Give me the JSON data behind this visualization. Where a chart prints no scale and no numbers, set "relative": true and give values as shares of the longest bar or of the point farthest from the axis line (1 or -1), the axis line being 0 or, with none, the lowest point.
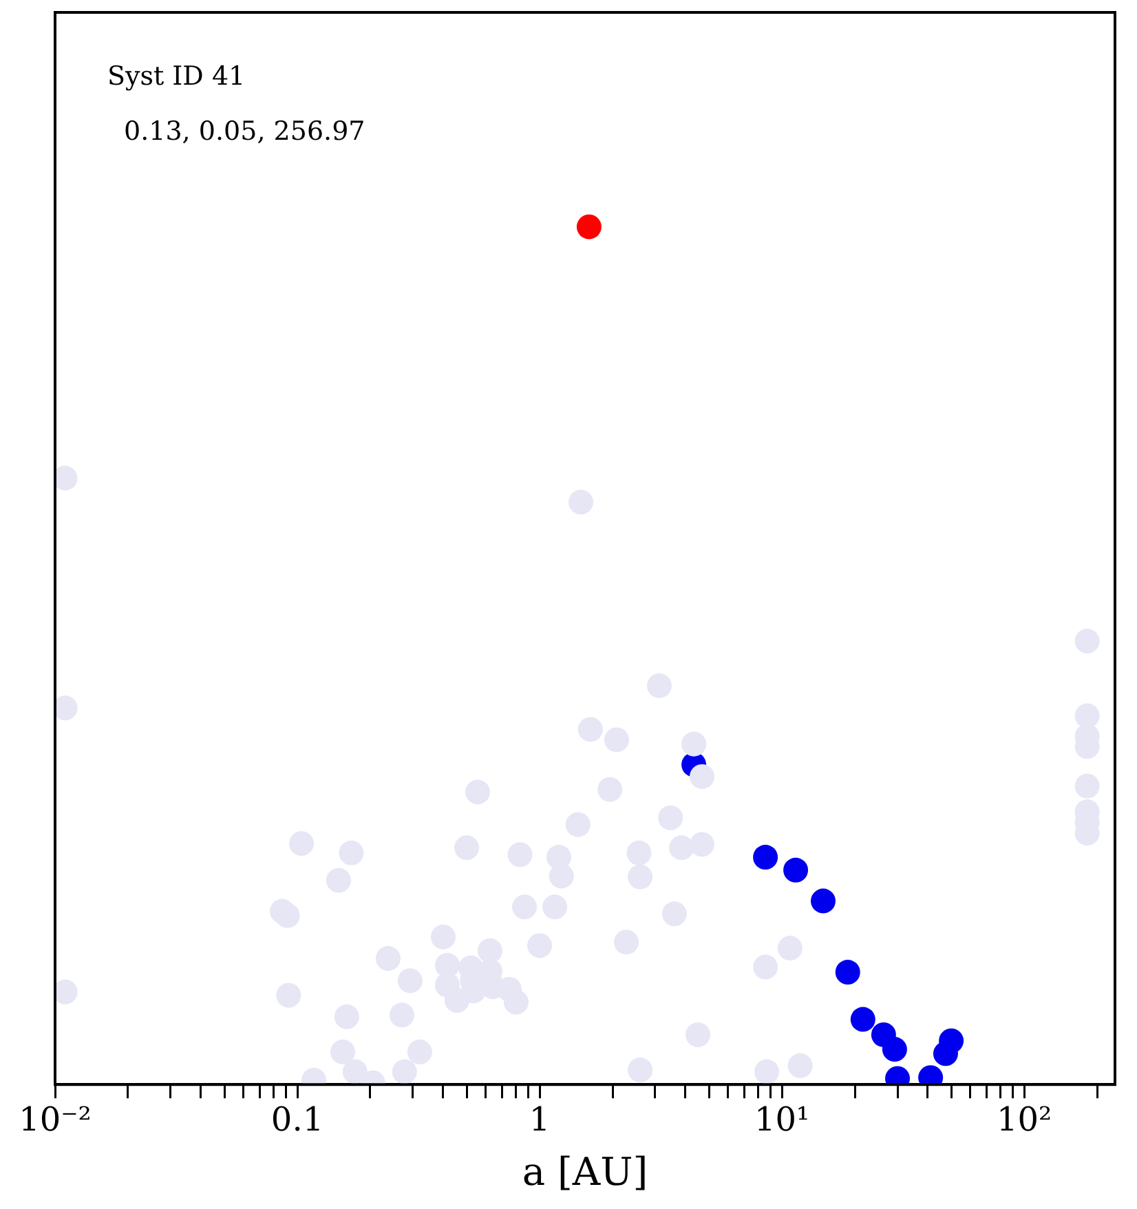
{
  "chart_data": {
    "type": "scatter",
    "xlabel": "a [AU]",
    "relative": true,
    "log": "x",
    "legend": false,
    "grid": false,
    "marker": "circle",
    "xlim": [
      0.01,
      237
    ],
    "xticks": [
      {
        "value": 0.01,
        "label": "10⁻²"
      },
      {
        "value": 0.02,
        "label": null
      },
      {
        "value": 0.03,
        "label": null
      },
      {
        "value": 0.04,
        "label": null
      },
      {
        "value": 0.05,
        "label": null
      },
      {
        "value": 0.06,
        "label": null
      },
      {
        "value": 0.07,
        "label": null
      },
      {
        "value": 0.08,
        "label": null
      },
      {
        "value": 0.09,
        "label": null
      },
      0.1,
      {
        "value": 0.2,
        "label": null
      },
      {
        "value": 0.3,
        "label": null
      },
      {
        "value": 0.4,
        "label": null
      },
      {
        "value": 0.5,
        "label": null
      },
      {
        "value": 0.6,
        "label": null
      },
      {
        "value": 0.7,
        "label": null
      },
      {
        "value": 0.8,
        "label": null
      },
      {
        "value": 0.9,
        "label": null
      },
      1,
      {
        "value": 2,
        "label": null
      },
      {
        "value": 3,
        "label": null
      },
      {
        "value": 4,
        "label": null
      },
      {
        "value": 5,
        "label": null
      },
      {
        "value": 6,
        "label": null
      },
      {
        "value": 7,
        "label": null
      },
      {
        "value": 8,
        "label": null
      },
      {
        "value": 9,
        "label": null
      },
      {
        "value": 10,
        "label": "10¹"
      },
      {
        "value": 20,
        "label": null
      },
      {
        "value": 30,
        "label": null
      },
      {
        "value": 40,
        "label": null
      },
      {
        "value": 50,
        "label": null
      },
      {
        "value": 60,
        "label": null
      },
      {
        "value": 70,
        "label": null
      },
      {
        "value": 80,
        "label": null
      },
      {
        "value": 90,
        "label": null
      },
      {
        "value": 100,
        "label": "10²"
      },
      {
        "value": 200,
        "label": null
      }
    ],
    "annotations": [
      "Syst ID 41",
      "0.13, 0.05, 256.97"
    ],
    "series": [
      {
        "color": "#e6e6f5",
        "x": [
          0.011,
          0.011,
          0.011,
          1.48,
          3.12,
          1.62,
          2.08,
          1.95,
          4.33,
          4.68,
          3.47,
          1.44,
          3.85,
          4.68,
          3.6,
          0.104,
          0.167,
          0.148,
          0.0866,
          0.091,
          0.092,
          0.237,
          0.4,
          0.416,
          0.292,
          0.416,
          0.52,
          0.527,
          0.624,
          0.624,
          0.533,
          0.456,
          0.641,
          0.75,
          0.8,
          0.866,
          0.83,
          1.0,
          1.155,
          1.23,
          1.2,
          2.28,
          2.57,
          2.6,
          2.6,
          0.16,
          0.27,
          0.154,
          0.32,
          0.173,
          0.277,
          0.205,
          0.117,
          8.55,
          10.8,
          8.66,
          11.9,
          4.5,
          0.555,
          0.5,
          182,
          182,
          182,
          182,
          182,
          182,
          182,
          182
        ],
        "values": [
          0.707,
          0.439,
          0.108,
          0.679,
          0.465,
          0.414,
          0.402,
          0.344,
          0.397,
          0.359,
          0.311,
          0.303,
          0.276,
          0.28,
          0.199,
          0.281,
          0.27,
          0.238,
          0.202,
          0.197,
          0.104,
          0.147,
          0.172,
          0.139,
          0.121,
          0.116,
          0.136,
          0.121,
          0.156,
          0.132,
          0.109,
          0.098,
          0.114,
          0.111,
          0.096,
          0.207,
          0.268,
          0.162,
          0.207,
          0.243,
          0.265,
          0.166,
          0.27,
          0.242,
          0.017,
          0.079,
          0.081,
          0.038,
          0.038,
          0.015,
          0.015,
          0.002,
          0.005,
          0.137,
          0.159,
          0.015,
          0.022,
          0.058,
          0.341,
          0.276,
          0.517,
          0.43,
          0.406,
          0.394,
          0.348,
          0.318,
          0.306,
          0.293
        ]
      },
      {
        "color": "#0000ee",
        "x": [
          4.33,
          8.55,
          11.4,
          14.8,
          18.7,
          21.6,
          26.3,
          29.2,
          30.0,
          41.1,
          47.4,
          50.0
        ],
        "values": [
          0.373,
          0.265,
          0.25,
          0.214,
          0.131,
          0.076,
          0.058,
          0.041,
          0.007,
          0.008,
          0.036,
          0.051
        ]
      },
      {
        "color": "#ff0000",
        "x": [
          1.6
        ],
        "values": [
          1
        ]
      }
    ]
  }
}
